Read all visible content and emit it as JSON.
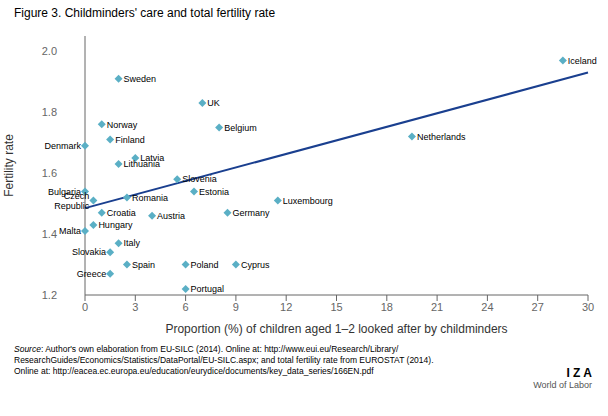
{
  "chart_data": {
    "type": "scatter",
    "title": "Figure 3. Childminders' care and total fertility rate",
    "xlabel": "Proportion (%) of children aged 1–2 looked after by childminders",
    "ylabel": "Fertility rate",
    "points": [
      {
        "name": "Iceland",
        "x": 28.5,
        "y": 1.97
      },
      {
        "name": "Sweden",
        "x": 2.0,
        "y": 1.91
      },
      {
        "name": "UK",
        "x": 7.0,
        "y": 1.83
      },
      {
        "name": "Belgium",
        "x": 8.0,
        "y": 1.75
      },
      {
        "name": "Norway",
        "x": 1.0,
        "y": 1.76
      },
      {
        "name": "Finland",
        "x": 1.5,
        "y": 1.71
      },
      {
        "name": "Denmark",
        "x": 0.0,
        "y": 1.69
      },
      {
        "name": "Netherlands",
        "x": 19.5,
        "y": 1.72
      },
      {
        "name": "Latvia",
        "x": 3.0,
        "y": 1.65
      },
      {
        "name": "Lithuania",
        "x": 2.0,
        "y": 1.63
      },
      {
        "name": "Slovenia",
        "x": 5.5,
        "y": 1.58
      },
      {
        "name": "Estonia",
        "x": 6.5,
        "y": 1.54
      },
      {
        "name": "Bulgaria",
        "x": 0.0,
        "y": 1.54
      },
      {
        "name": "Czech\nRepublic",
        "x": 0.5,
        "y": 1.51
      },
      {
        "name": "Romania",
        "x": 2.5,
        "y": 1.52
      },
      {
        "name": "Luxembourg",
        "x": 11.5,
        "y": 1.51
      },
      {
        "name": "Germany",
        "x": 8.5,
        "y": 1.47
      },
      {
        "name": "Croatia",
        "x": 1.0,
        "y": 1.47
      },
      {
        "name": "Austria",
        "x": 4.0,
        "y": 1.46
      },
      {
        "name": "Hungary",
        "x": 0.5,
        "y": 1.43
      },
      {
        "name": "Malta",
        "x": 0.0,
        "y": 1.41
      },
      {
        "name": "Italy",
        "x": 2.0,
        "y": 1.37
      },
      {
        "name": "Slovakia",
        "x": 1.5,
        "y": 1.34
      },
      {
        "name": "Spain",
        "x": 2.5,
        "y": 1.3
      },
      {
        "name": "Poland",
        "x": 6.0,
        "y": 1.3
      },
      {
        "name": "Cyprus",
        "x": 9.0,
        "y": 1.3
      },
      {
        "name": "Greece",
        "x": 1.5,
        "y": 1.27
      },
      {
        "name": "Portugal",
        "x": 6.0,
        "y": 1.22
      }
    ],
    "color": "#5aafc5",
    "trendline": {
      "x": [
        0,
        30
      ],
      "y": [
        1.485,
        1.93
      ],
      "color": "#1a3f8f"
    },
    "xlim": [
      0,
      30
    ],
    "ylim": [
      1.2,
      2.05
    ],
    "xticks": [
      0,
      3,
      6,
      9,
      12,
      15,
      18,
      21,
      24,
      27,
      30
    ],
    "yticks": [
      1.2,
      1.4,
      1.6,
      1.8,
      {
        "value": 2,
        "label": "2.0"
      }
    ],
    "grid": false,
    "source": {
      "italic": "Source",
      "text": ": Author's own elaboration from EU-SILC (2014). Online at: http://www.eui.eu/Research/Library/\nResearchGuides/Economics/Statistics/DataPortal/EU-SILC.aspx; and total fertility rate from EUROSTAT (2014).\nOnline at: http://eacea.ec.europa.eu/education/eurydice/documents/key_data_series/166EN.pdf"
    },
    "logo": [
      "I Z A",
      "World of Labor"
    ]
  }
}
